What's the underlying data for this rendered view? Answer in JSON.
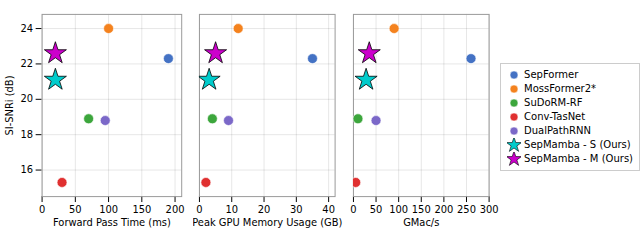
{
  "chart_data": [
    {
      "type": "scatter",
      "xlabel": "Forward Pass Time (ms)",
      "ylabel": "SI-SNRi (dB)",
      "xlim": [
        0,
        210
      ],
      "xticks": [
        0,
        50,
        100,
        150,
        200
      ],
      "ylim": [
        14.5,
        24.8
      ],
      "yticks": [
        16,
        18,
        20,
        22,
        24
      ],
      "grid": true,
      "series": [
        {
          "name": "SepFormer",
          "color": "#4472c4",
          "marker": "circle",
          "x": [
            190
          ],
          "values": [
            22.3
          ]
        },
        {
          "name": "MossFormer2*",
          "color": "#f4821e",
          "marker": "circle",
          "x": [
            100
          ],
          "values": [
            24.0
          ]
        },
        {
          "name": "SuDoRM-RF",
          "color": "#3ca63c",
          "marker": "circle",
          "x": [
            70
          ],
          "values": [
            18.9
          ]
        },
        {
          "name": "Conv-TasNet",
          "color": "#e03030",
          "marker": "circle",
          "x": [
            30
          ],
          "values": [
            15.3
          ]
        },
        {
          "name": "DualPathRNN",
          "color": "#7b68c8",
          "marker": "circle",
          "x": [
            95
          ],
          "values": [
            18.8
          ]
        },
        {
          "name": "SepMamba - S (Ours)",
          "color": "#00cccc",
          "marker": "star",
          "x": [
            20
          ],
          "values": [
            21.1
          ]
        },
        {
          "name": "SepMamba - M (Ours)",
          "color": "#cc00cc",
          "marker": "star",
          "x": [
            20
          ],
          "values": [
            22.6
          ]
        }
      ]
    },
    {
      "type": "scatter",
      "xlabel": "Peak GPU Memory Usage (GB)",
      "xlim": [
        0,
        42
      ],
      "xticks": [
        0,
        10,
        20,
        30,
        40
      ],
      "ylim": [
        14.5,
        24.8
      ],
      "yticks": [
        16,
        18,
        20,
        22,
        24
      ],
      "grid": true,
      "tick_labels": "x",
      "series": [
        {
          "name": "SepFormer",
          "color": "#4472c4",
          "marker": "circle",
          "x": [
            35
          ],
          "values": [
            22.3
          ]
        },
        {
          "name": "MossFormer2*",
          "color": "#f4821e",
          "marker": "circle",
          "x": [
            12
          ],
          "values": [
            24.0
          ]
        },
        {
          "name": "SuDoRM-RF",
          "color": "#3ca63c",
          "marker": "circle",
          "x": [
            4
          ],
          "values": [
            18.9
          ]
        },
        {
          "name": "Conv-TasNet",
          "color": "#e03030",
          "marker": "circle",
          "x": [
            2
          ],
          "values": [
            15.3
          ]
        },
        {
          "name": "DualPathRNN",
          "color": "#7b68c8",
          "marker": "circle",
          "x": [
            9
          ],
          "values": [
            18.8
          ]
        },
        {
          "name": "SepMamba - S (Ours)",
          "color": "#00cccc",
          "marker": "star",
          "x": [
            3
          ],
          "values": [
            21.1
          ]
        },
        {
          "name": "SepMamba - M (Ours)",
          "color": "#cc00cc",
          "marker": "star",
          "x": [
            5
          ],
          "values": [
            22.6
          ]
        }
      ]
    },
    {
      "type": "scatter",
      "xlabel": "GMac/s",
      "xlim": [
        0,
        300
      ],
      "xticks": [
        0,
        50,
        100,
        150,
        200,
        250,
        300
      ],
      "ylim": [
        14.5,
        24.8
      ],
      "yticks": [
        16,
        18,
        20,
        22,
        24
      ],
      "grid": true,
      "tick_labels": "x",
      "legend": "right",
      "series": [
        {
          "name": "SepFormer",
          "color": "#4472c4",
          "marker": "circle",
          "x": [
            260
          ],
          "values": [
            22.3
          ]
        },
        {
          "name": "MossFormer2*",
          "color": "#f4821e",
          "marker": "circle",
          "x": [
            90
          ],
          "values": [
            24.0
          ]
        },
        {
          "name": "SuDoRM-RF",
          "color": "#3ca63c",
          "marker": "circle",
          "x": [
            10
          ],
          "values": [
            18.9
          ]
        },
        {
          "name": "Conv-TasNet",
          "color": "#e03030",
          "marker": "circle",
          "x": [
            5
          ],
          "values": [
            15.3
          ]
        },
        {
          "name": "DualPathRNN",
          "color": "#7b68c8",
          "marker": "circle",
          "x": [
            50
          ],
          "values": [
            18.8
          ]
        },
        {
          "name": "SepMamba - S (Ours)",
          "color": "#00cccc",
          "marker": "star",
          "x": [
            28
          ],
          "values": [
            21.1
          ]
        },
        {
          "name": "SepMamba - M (Ours)",
          "color": "#cc00cc",
          "marker": "star",
          "x": [
            35
          ],
          "values": [
            22.6
          ]
        }
      ]
    }
  ]
}
